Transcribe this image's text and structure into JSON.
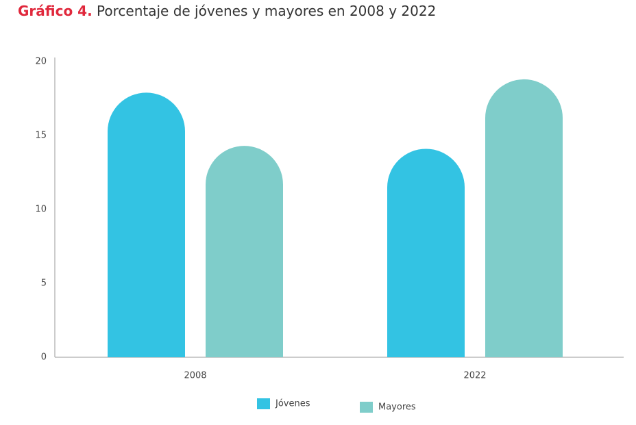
{
  "chart_data": {
    "type": "bar",
    "label": "Gráfico 4.",
    "title": "Porcentaje de jóvenes y mayores en 2008 y 2022",
    "categories": [
      "2008",
      "2022"
    ],
    "series": [
      {
        "name": "Jóvenes",
        "color": "#33c3e3",
        "values": [
          17.9,
          14.1
        ]
      },
      {
        "name": "Mayores",
        "color": "#7fcdca",
        "values": [
          14.3,
          18.8
        ]
      }
    ],
    "ylim": [
      0,
      20
    ],
    "yticks": [
      0,
      5,
      10,
      15,
      20
    ],
    "grid": false
  }
}
